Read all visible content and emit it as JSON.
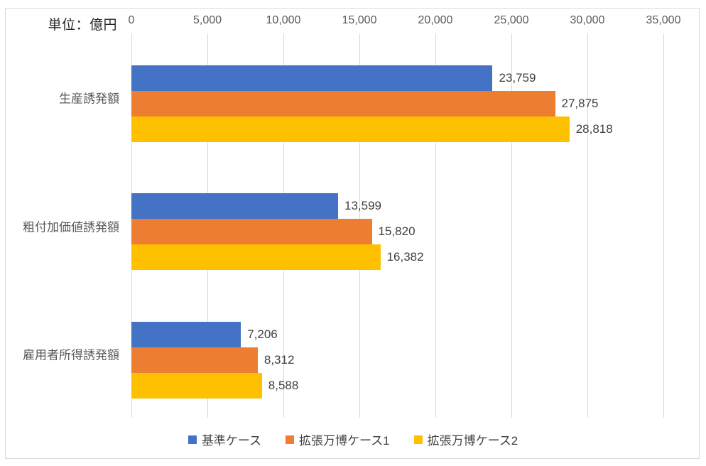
{
  "unit_label": "単位：億円",
  "chart_data": {
    "type": "bar",
    "orientation": "horizontal",
    "title": "",
    "unit_label": "単位：億円",
    "categories": [
      "生産誘発額",
      "粗付加価値誘発額",
      "雇用者所得誘発額"
    ],
    "series": [
      {
        "name": "基準ケース",
        "color": "#4472C4",
        "values": [
          23759,
          13599,
          7206
        ],
        "labels": [
          "23,759",
          "13,599",
          "7,206"
        ]
      },
      {
        "name": "拡張万博ケース1",
        "color": "#ED7D31",
        "values": [
          27875,
          15820,
          8312
        ],
        "labels": [
          "27,875",
          "15,820",
          "8,312"
        ]
      },
      {
        "name": "拡張万博ケース2",
        "color": "#FFC000",
        "values": [
          28818,
          16382,
          8588
        ],
        "labels": [
          "28,818",
          "16,382",
          "8,588"
        ]
      }
    ],
    "x_ticks": [
      {
        "value": 0,
        "label": "0"
      },
      {
        "value": 5000,
        "label": "5,000"
      },
      {
        "value": 10000,
        "label": "10,000"
      },
      {
        "value": 15000,
        "label": "15,000"
      },
      {
        "value": 20000,
        "label": "20,000"
      },
      {
        "value": 25000,
        "label": "25,000"
      },
      {
        "value": 30000,
        "label": "30,000"
      },
      {
        "value": 35000,
        "label": "35,000"
      }
    ],
    "xlim": [
      0,
      35000
    ],
    "grid": true,
    "legend_position": "bottom"
  },
  "colors": {
    "grid": "#D9D9D9",
    "frame_border": "#D9D9D9",
    "tick_text": "#595959",
    "category_text": "#595959",
    "value_text": "#404040",
    "unit_text": "#262626"
  }
}
